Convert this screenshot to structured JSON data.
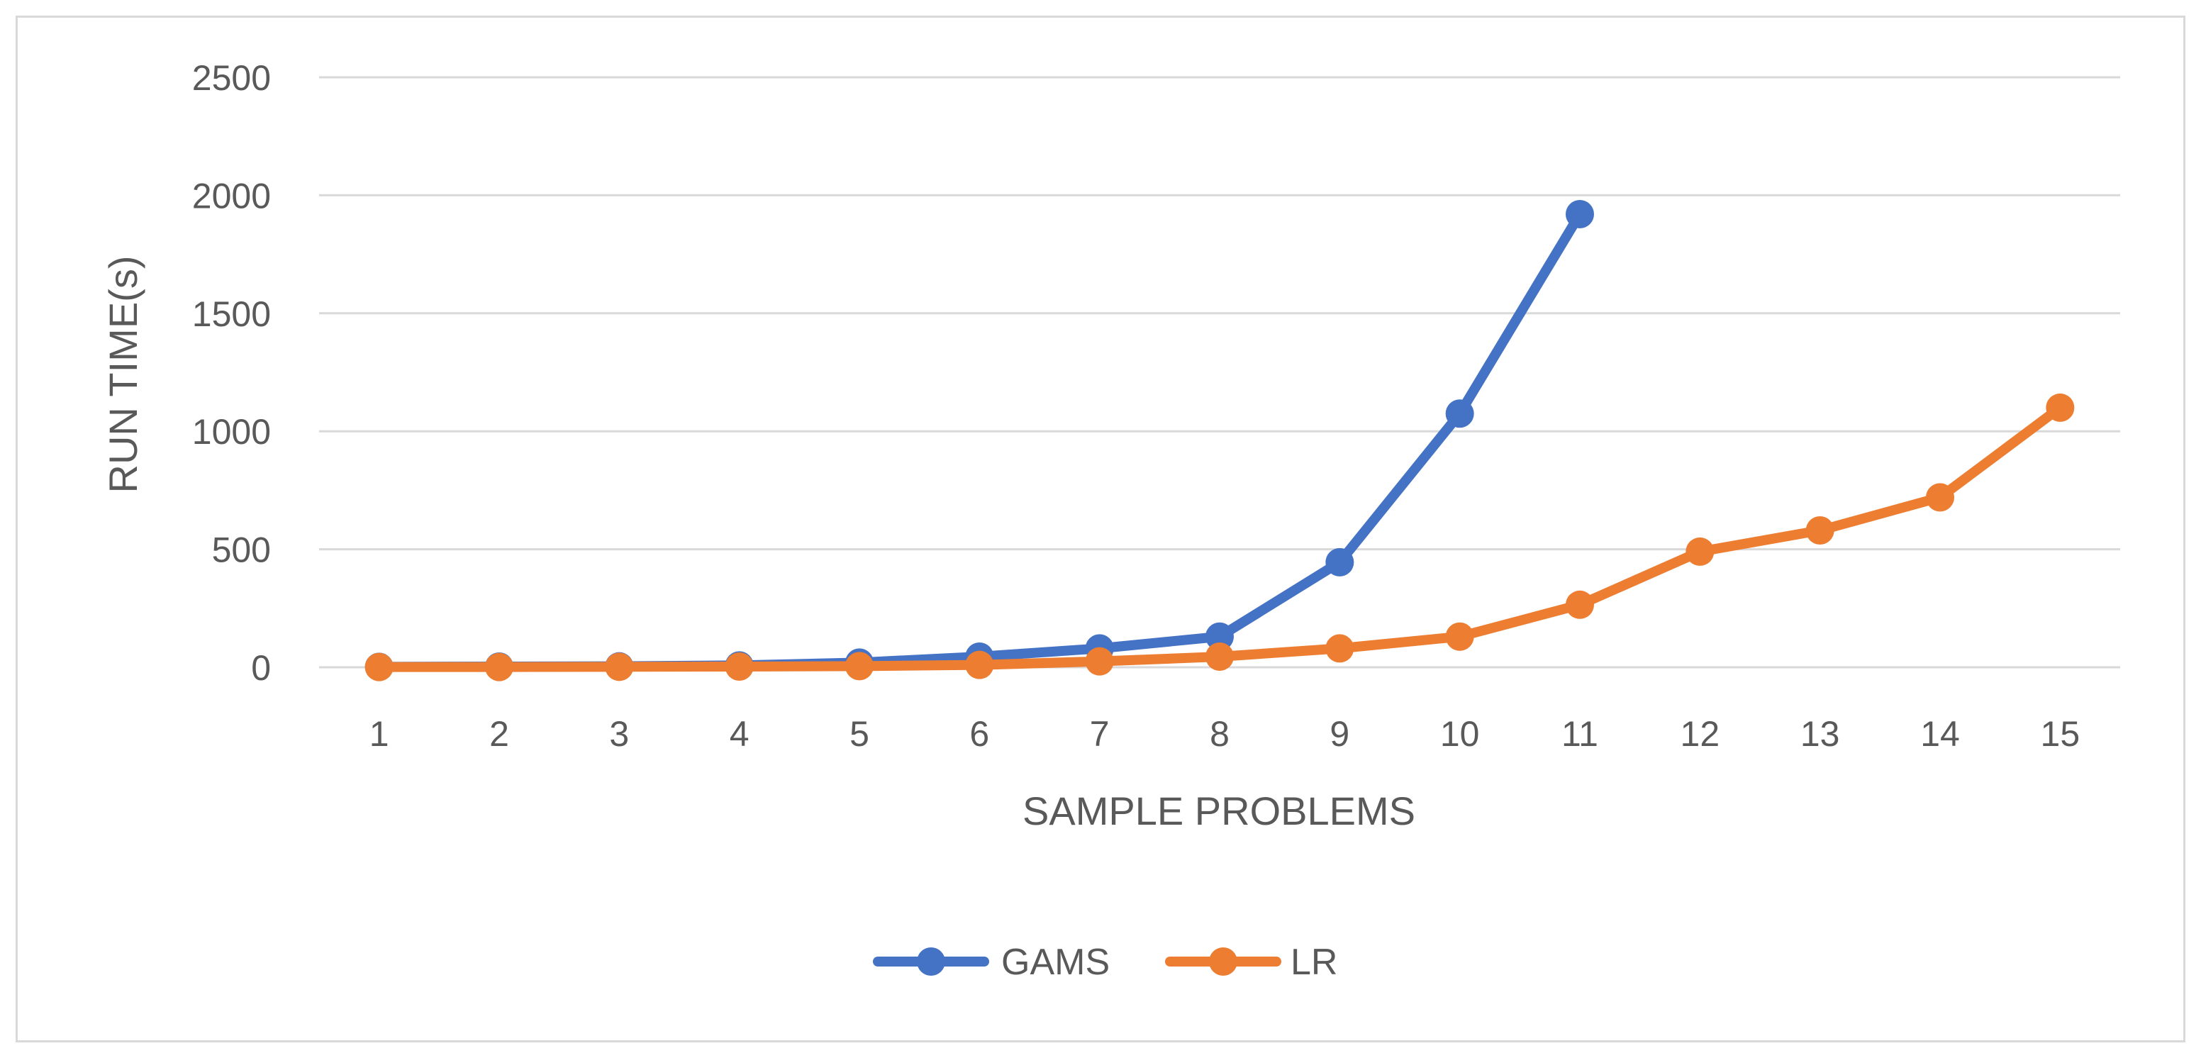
{
  "chart_data": {
    "type": "line",
    "title": "",
    "xlabel": "SAMPLE PROBLEMS",
    "ylabel": "RUN TIME(s)",
    "categories": [
      "1",
      "2",
      "3",
      "4",
      "5",
      "6",
      "7",
      "8",
      "9",
      "10",
      "11",
      "12",
      "13",
      "14",
      "15"
    ],
    "ylim": [
      0,
      2500
    ],
    "yticks": [
      0,
      500,
      1000,
      1500,
      2000,
      2500
    ],
    "grid": true,
    "legend_position": "bottom",
    "series": [
      {
        "name": "GAMS",
        "color": "#4472C4",
        "values": [
          2,
          3,
          4,
          8,
          20,
          45,
          80,
          130,
          445,
          1075,
          1920,
          null,
          null,
          null,
          null
        ]
      },
      {
        "name": "LR",
        "color": "#ED7D31",
        "values": [
          1,
          1,
          2,
          3,
          5,
          10,
          25,
          45,
          80,
          130,
          265,
          490,
          580,
          720,
          1100
        ]
      }
    ]
  }
}
